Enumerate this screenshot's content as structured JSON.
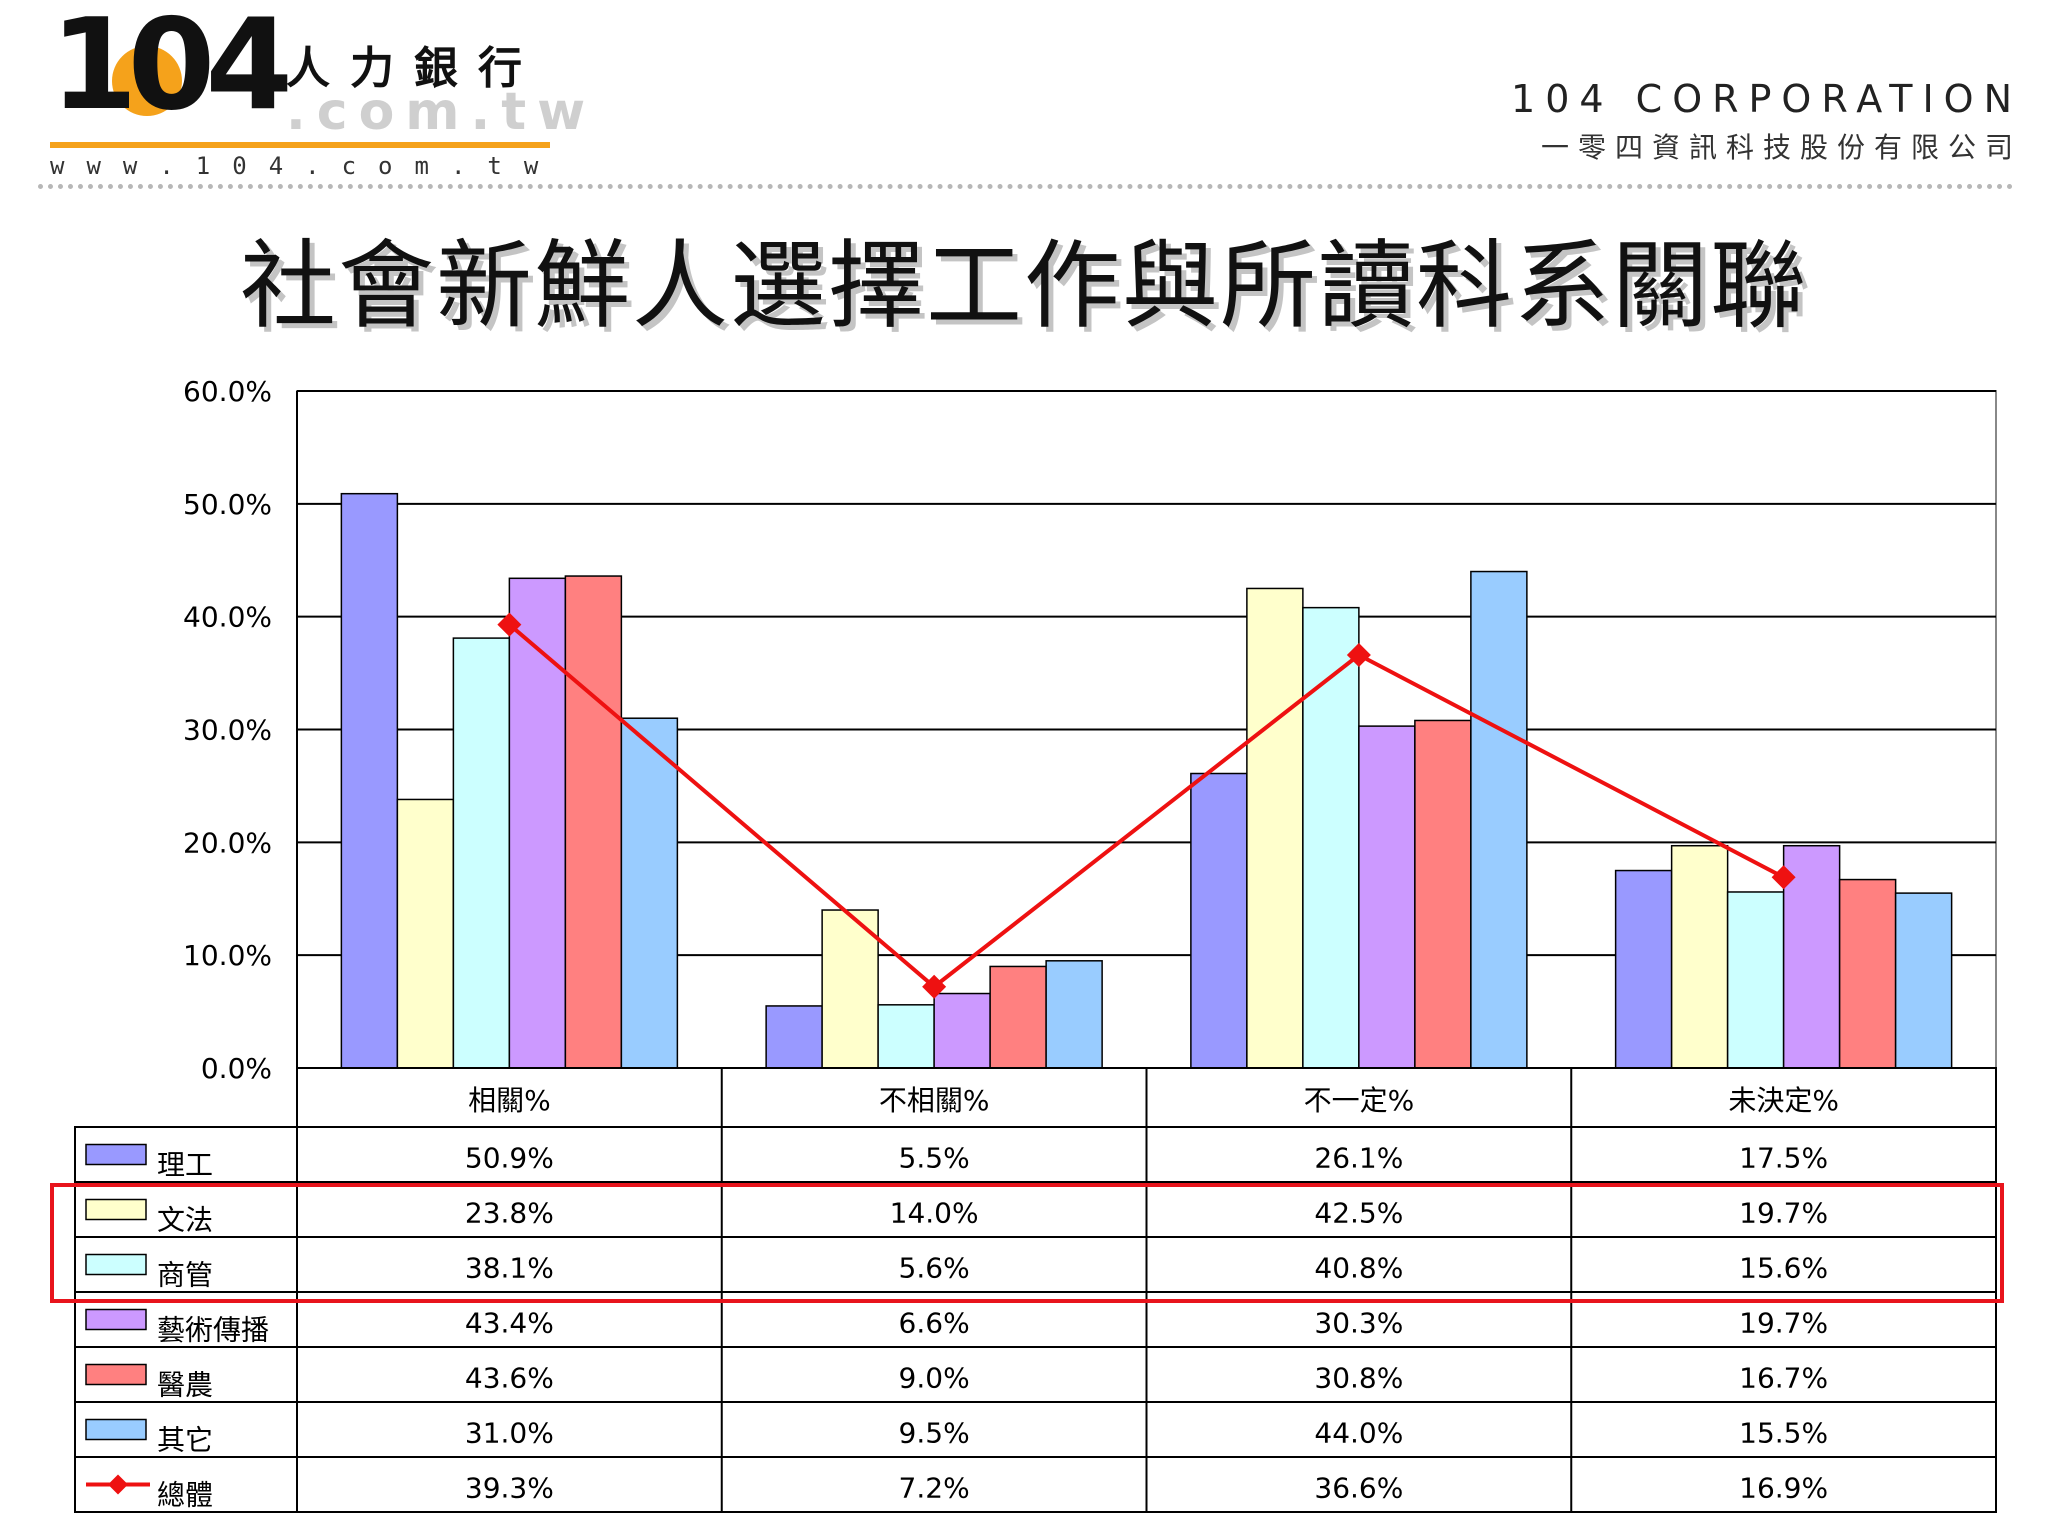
{
  "logo": {
    "digits": "104",
    "cn": "人力銀行",
    "domain": ".com.tw",
    "url": "www.104.com.tw"
  },
  "corp": {
    "en": "104 CORPORATION",
    "cn": "一零四資訊科技股份有限公司"
  },
  "title": "社會新鮮人選擇工作與所讀科系關聯",
  "colors": {
    "理工": "#9999ff",
    "文法": "#ffffcc",
    "商管": "#ccffff",
    "藝術傳播": "#cc99ff",
    "醫農": "#ff8080",
    "其它": "#99ccff",
    "總體": "#ee1111",
    "highlight": "#e8141c"
  },
  "chart_data": {
    "type": "bar",
    "title": "社會新鮮人選擇工作與所讀科系關聯",
    "categories": [
      "相關%",
      "不相關%",
      "不一定%",
      "未決定%"
    ],
    "y_ticks": [
      "0.0%",
      "10.0%",
      "20.0%",
      "30.0%",
      "40.0%",
      "50.0%",
      "60.0%"
    ],
    "ylim": [
      0,
      60
    ],
    "grid": true,
    "legend": "data-table-left",
    "series": [
      {
        "name": "理工",
        "values": [
          50.9,
          5.5,
          26.1,
          17.5
        ],
        "labels": [
          "50.9%",
          "5.5%",
          "26.1%",
          "17.5%"
        ],
        "color": "#9999ff"
      },
      {
        "name": "文法",
        "values": [
          23.8,
          14.0,
          42.5,
          19.7
        ],
        "labels": [
          "23.8%",
          "14.0%",
          "42.5%",
          "19.7%"
        ],
        "color": "#ffffcc"
      },
      {
        "name": "商管",
        "values": [
          38.1,
          5.6,
          40.8,
          15.6
        ],
        "labels": [
          "38.1%",
          "5.6%",
          "40.8%",
          "15.6%"
        ],
        "color": "#ccffff"
      },
      {
        "name": "藝術傳播",
        "values": [
          43.4,
          6.6,
          30.3,
          19.7
        ],
        "labels": [
          "43.4%",
          "6.6%",
          "30.3%",
          "19.7%"
        ],
        "color": "#cc99ff"
      },
      {
        "name": "醫農",
        "values": [
          43.6,
          9.0,
          30.8,
          16.7
        ],
        "labels": [
          "43.6%",
          "9.0%",
          "30.8%",
          "16.7%"
        ],
        "color": "#ff8080"
      },
      {
        "name": "其它",
        "values": [
          31.0,
          9.5,
          44.0,
          15.5
        ],
        "labels": [
          "31.0%",
          "9.5%",
          "44.0%",
          "15.5%"
        ],
        "color": "#99ccff"
      },
      {
        "name": "總體",
        "type": "line",
        "values": [
          39.3,
          7.2,
          36.6,
          16.9
        ],
        "labels": [
          "39.3%",
          "7.2%",
          "36.6%",
          "16.9%"
        ],
        "color": "#ee1111"
      }
    ],
    "highlighted_rows": [
      "文法",
      "商管"
    ]
  }
}
